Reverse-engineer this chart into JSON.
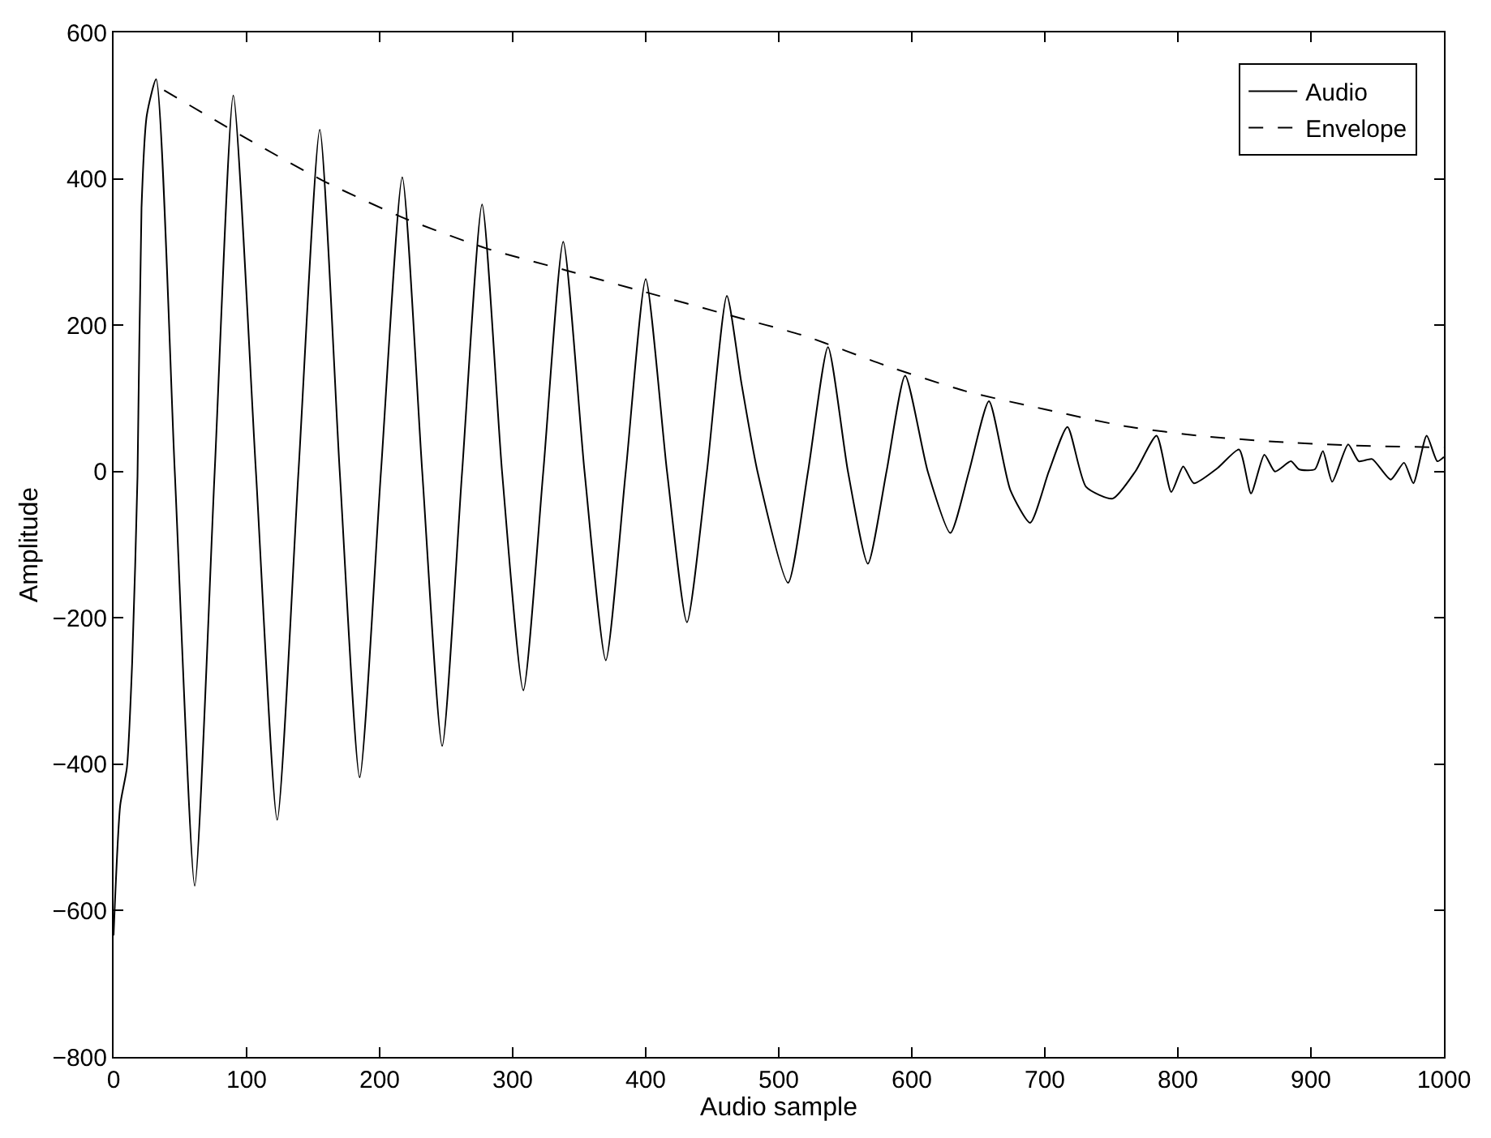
{
  "chart_data": {
    "type": "line",
    "xlabel": "Audio sample",
    "ylabel": "Amplitude",
    "xlim": [
      0,
      1000
    ],
    "ylim": [
      -800,
      600
    ],
    "xticks": [
      0,
      100,
      200,
      300,
      400,
      500,
      600,
      700,
      800,
      900,
      1000
    ],
    "yticks": [
      -800,
      -600,
      -400,
      -200,
      0,
      200,
      400,
      600
    ],
    "legend": "top right",
    "marker": "none",
    "series": [
      {
        "name": "Audio",
        "color": "#000000",
        "line_style": "solid",
        "x": [
          0,
          5,
          10,
          14,
          18,
          21,
          25,
          32,
          46,
          61,
          76,
          90,
          107,
          123,
          139,
          155,
          170,
          185,
          201,
          217,
          232,
          247,
          262,
          277,
          292,
          308,
          323,
          338,
          354,
          370,
          385,
          400,
          416,
          431,
          446,
          461,
          472,
          484,
          507,
          522,
          537,
          552,
          567,
          581,
          595,
          612,
          629,
          643,
          658,
          674,
          689,
          703,
          717,
          731,
          751,
          768,
          784,
          795,
          804,
          812,
          830,
          846,
          855,
          865,
          873,
          885,
          891,
          903,
          909,
          916,
          928,
          936,
          946,
          960,
          970,
          977,
          987,
          995,
          1000
        ],
        "values": [
          -634,
          -456,
          -405,
          -260,
          -6,
          360,
          487,
          536,
          0,
          -566,
          0,
          514,
          0,
          -476,
          0,
          467,
          0,
          -418,
          0,
          402,
          0,
          -375,
          0,
          365,
          0,
          -299,
          0,
          314,
          0,
          -258,
          0,
          263,
          0,
          -206,
          0,
          240,
          120,
          0,
          -152,
          0,
          170,
          0,
          -126,
          0,
          131,
          0,
          -84,
          0,
          96,
          -25,
          -70,
          0,
          61,
          -21,
          -37,
          0,
          49,
          -28,
          7,
          -16,
          5,
          30,
          -30,
          23,
          0,
          14,
          3,
          3,
          28,
          -14,
          37,
          14,
          17,
          -11,
          12,
          -16,
          49,
          14,
          20
        ]
      },
      {
        "name": "Envelope",
        "color": "#000000",
        "line_style": "dashed",
        "x": [
          38,
          100,
          160,
          220,
          280,
          340,
          400,
          460,
          520,
          580,
          640,
          700,
          760,
          820,
          880,
          940,
          1000
        ],
        "values": [
          521,
          455,
          395,
          345,
          305,
          275,
          245,
          215,
          185,
          145,
          110,
          85,
          62,
          48,
          40,
          35,
          33
        ]
      }
    ]
  }
}
